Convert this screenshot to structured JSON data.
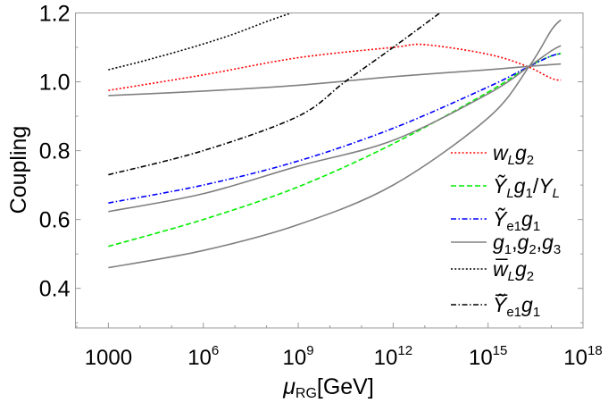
{
  "chart_data": {
    "type": "line",
    "title": "",
    "xlabel": {
      "main": "μ",
      "sub": "RG",
      "rest": "[GeV]"
    },
    "ylabel": "Coupling",
    "xscale": "log",
    "xlim": [
      91,
      1e+18
    ],
    "ylim": [
      0.285,
      1.2
    ],
    "grid": false,
    "legend_placement": "right",
    "x_ticks": [
      {
        "value": 1000.0,
        "base": "1000",
        "exp": ""
      },
      {
        "value": 1000000.0,
        "base": "10",
        "exp": "6"
      },
      {
        "value": 1000000000.0,
        "base": "10",
        "exp": "9"
      },
      {
        "value": 1000000000000.0,
        "base": "10",
        "exp": "12"
      },
      {
        "value": 1000000000000000.0,
        "base": "10",
        "exp": "15"
      },
      {
        "value": 1e+18,
        "base": "10",
        "exp": "18"
      }
    ],
    "y_ticks": [
      {
        "value": 0.4,
        "label": "0.4"
      },
      {
        "value": 0.6,
        "label": "0.6"
      },
      {
        "value": 0.8,
        "label": "0.8"
      },
      {
        "value": 1.0,
        "label": "1.0"
      },
      {
        "value": 1.2,
        "label": "1.2"
      }
    ],
    "series": [
      {
        "name": "w_L g_2",
        "color": "#ff0000",
        "style": "dotted",
        "label": [
          {
            "t": "w",
            "i": true
          },
          {
            "t": "L",
            "sub": true,
            "i": true
          },
          {
            "t": "g",
            "i": true
          },
          {
            "t": "2",
            "sub": true
          }
        ],
        "x": [
          1000.0,
          1000000.0,
          1000000000.0,
          1000000000000.0,
          10000000000000.0,
          1000000000000000.0,
          1.6e+16,
          1e+17,
          2e+17
        ],
        "y": [
          0.975,
          1.02,
          1.07,
          1.1,
          1.108,
          1.08,
          1.046,
          1.01,
          1.005
        ]
      },
      {
        "name": "Ỹ_L g_1/Y_L",
        "color": "#00ee00",
        "style": "dashed",
        "label": [
          {
            "t": "Ỹ",
            "i": true
          },
          {
            "t": "L",
            "sub": true,
            "i": true
          },
          {
            "t": "g",
            "i": true
          },
          {
            "t": "1",
            "sub": true
          },
          {
            "t": "/"
          },
          {
            "t": "Y",
            "i": true
          },
          {
            "t": "L",
            "sub": true,
            "i": true
          }
        ],
        "x": [
          1000.0,
          1000000.0,
          1000000000.0,
          1000000000000.0,
          1000000000000000.0,
          2e+16,
          1e+17,
          2e+17
        ],
        "y": [
          0.522,
          0.6,
          0.695,
          0.82,
          0.97,
          1.045,
          1.075,
          1.082
        ]
      },
      {
        "name": "Ỹ_e1 g_1",
        "color": "#0000ff",
        "style": "dashdot",
        "label": [
          {
            "t": "Ỹ",
            "i": true
          },
          {
            "t": "e1",
            "sub": true
          },
          {
            "t": "g",
            "i": true
          },
          {
            "t": "1",
            "sub": true
          }
        ],
        "x": [
          1000.0,
          1000000.0,
          1000000000.0,
          1000000000000.0,
          1000000000000000.0,
          2e+16,
          1e+17,
          2e+17
        ],
        "y": [
          0.648,
          0.7,
          0.77,
          0.865,
          0.985,
          1.045,
          1.075,
          1.082
        ]
      },
      {
        "name": "g_1,g_2,g_3",
        "color": "#808080",
        "style": "solid",
        "label": [
          {
            "t": "g",
            "i": true
          },
          {
            "t": "1",
            "sub": true
          },
          {
            "t": ","
          },
          {
            "t": "g",
            "i": true
          },
          {
            "t": "2",
            "sub": true
          },
          {
            "t": ","
          },
          {
            "t": "g",
            "i": true
          },
          {
            "t": "3",
            "sub": true
          }
        ],
        "x": [
          1000.0,
          1000000.0,
          1000000000.0,
          1000000000000.0,
          1000000000000000.0,
          2e+16,
          1e+17,
          2e+17
        ],
        "y": [
          0.96,
          0.973,
          0.99,
          1.015,
          1.035,
          1.045,
          1.05,
          1.052
        ]
      },
      {
        "name": "g_1",
        "color": "#808080",
        "style": "solid",
        "legend": false,
        "x": [
          1000.0,
          1000000.0,
          1000000000.0,
          1000000000000.0,
          1000000000000000.0,
          2e+16,
          1e+17,
          2e+17
        ],
        "y": [
          0.623,
          0.675,
          0.755,
          0.83,
          0.965,
          1.045,
          1.09,
          1.105
        ]
      },
      {
        "name": "g_3",
        "color": "#808080",
        "style": "solid",
        "legend": false,
        "x": [
          1000.0,
          1000000.0,
          1000000000.0,
          1000000000000.0,
          1000000000000000.0,
          2e+16,
          1e+17,
          2e+17
        ],
        "y": [
          0.46,
          0.51,
          0.585,
          0.7,
          0.895,
          1.045,
          1.15,
          1.18
        ]
      },
      {
        "name": "w̄_L g_2",
        "color": "#000000",
        "style": "dotted",
        "label": [
          {
            "t": "w̅",
            "i": true
          },
          {
            "t": "L",
            "sub": true,
            "i": true
          },
          {
            "t": "g",
            "i": true
          },
          {
            "t": "2",
            "sub": true
          }
        ],
        "x": [
          1000.0,
          10000.0,
          100000.0,
          1000000.0,
          10000000.0,
          100000000.0,
          600000000.0
        ],
        "y": [
          1.035,
          1.058,
          1.083,
          1.11,
          1.14,
          1.175,
          1.2
        ]
      },
      {
        "name": "Ỹ̄_e1 g_1",
        "color": "#000000",
        "style": "dashdot",
        "label": [
          {
            "t": "Ỹ̅",
            "i": true
          },
          {
            "t": "e1",
            "sub": true
          },
          {
            "t": "g",
            "i": true
          },
          {
            "t": "1",
            "sub": true
          }
        ],
        "x": [
          1000.0,
          1000000.0,
          1000000000.0,
          30000000000.0,
          1000000000000.0,
          30000000000000.0
        ],
        "y": [
          0.73,
          0.8,
          0.9,
          1.0,
          1.1,
          1.2
        ]
      }
    ]
  }
}
